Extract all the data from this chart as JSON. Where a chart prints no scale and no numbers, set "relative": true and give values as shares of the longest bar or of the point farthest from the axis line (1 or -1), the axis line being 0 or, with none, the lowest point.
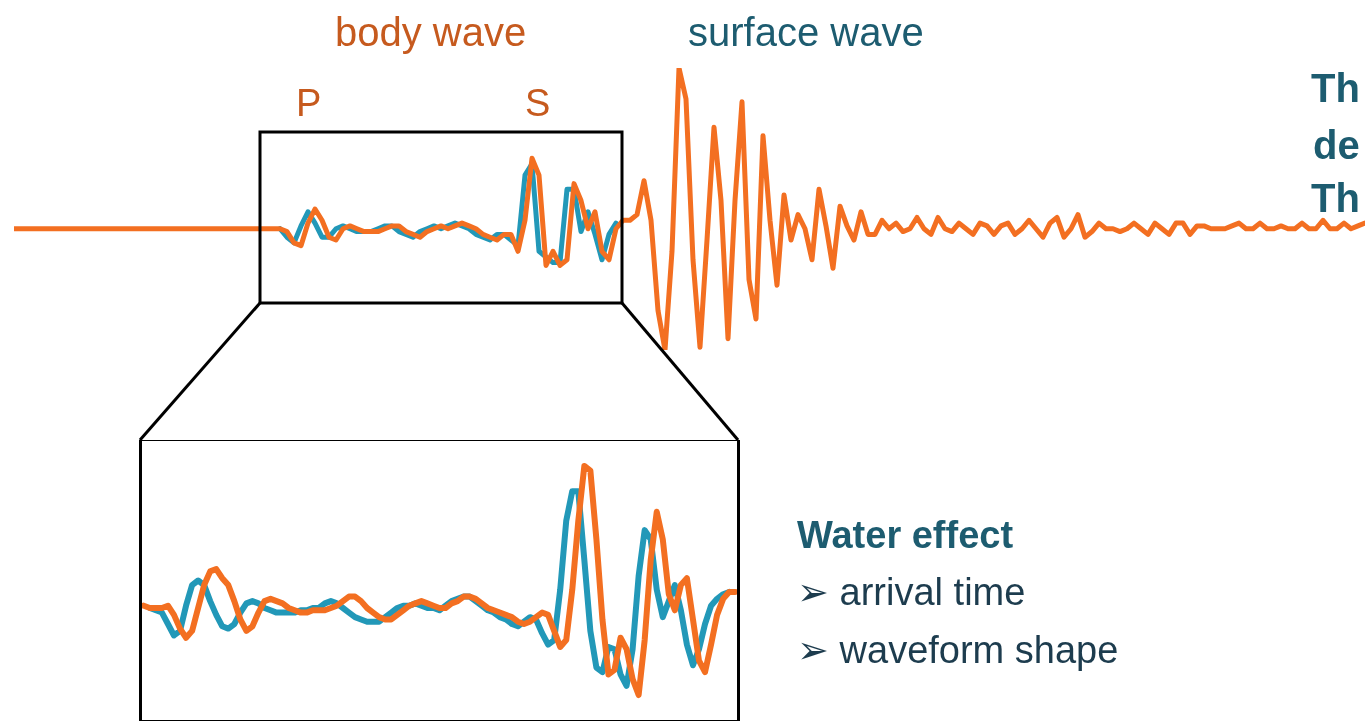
{
  "chart_data": [
    {
      "type": "line",
      "relative": true,
      "categories": [
        null,
        null,
        null,
        null,
        null,
        null,
        null,
        null,
        null,
        null,
        null,
        null,
        null,
        null,
        null,
        null,
        null,
        null,
        null,
        null,
        null,
        null,
        null,
        null,
        null,
        null,
        null,
        null,
        null,
        null,
        null,
        null,
        null,
        null,
        null,
        null,
        null,
        null,
        null,
        null,
        null,
        null,
        null,
        null,
        null,
        null,
        null,
        null,
        null,
        null,
        null,
        null,
        null,
        null,
        null,
        null,
        null,
        null,
        null,
        null,
        null,
        null,
        null,
        null,
        null,
        null,
        null,
        null,
        null,
        null,
        null,
        null,
        null,
        null,
        null,
        null,
        null,
        null,
        null,
        null,
        null,
        null,
        null,
        null,
        null,
        null,
        null,
        null,
        null,
        null,
        null,
        null,
        null,
        null,
        null,
        null,
        null,
        null,
        null,
        null,
        null,
        null,
        null,
        null,
        null,
        null,
        null,
        null,
        null,
        null,
        null,
        null,
        null,
        null,
        null,
        null,
        null,
        null,
        null,
        null,
        null,
        null,
        null,
        null,
        null,
        null,
        null,
        null,
        null,
        null,
        null,
        null,
        null,
        null,
        null,
        null,
        null,
        null,
        null,
        null,
        null,
        null,
        null,
        null,
        null,
        null,
        null,
        null,
        null,
        null,
        null,
        null,
        null,
        null,
        null,
        null,
        null,
        null,
        null,
        null,
        null,
        null,
        null,
        null,
        null,
        null,
        null,
        null,
        null,
        null,
        null,
        null,
        null,
        null,
        null,
        null,
        null,
        null,
        null,
        null,
        null,
        null,
        null,
        null,
        null,
        null,
        null,
        null,
        null,
        null,
        null,
        null,
        null,
        null
      ],
      "annotations": [
        "body wave",
        "P",
        "S",
        "surface wave",
        "Th",
        "de",
        "Th"
      ],
      "series": [
        {
          "color": "#2298b8",
          "values": [
            null,
            null,
            null,
            null,
            null,
            null,
            null,
            null,
            null,
            null,
            null,
            null,
            null,
            null,
            null,
            null,
            null,
            null,
            null,
            null,
            null,
            null,
            null,
            null,
            null,
            null,
            null,
            null,
            null,
            null,
            null,
            null,
            null,
            null,
            null,
            null,
            null,
            null,
            0.43,
            0.4,
            0.38,
            0.44,
            0.49,
            0.45,
            0.4,
            0.4,
            0.43,
            0.44,
            0.43,
            0.42,
            0.42,
            0.42,
            0.43,
            0.44,
            0.44,
            0.42,
            0.41,
            0.4,
            0.42,
            0.43,
            0.44,
            0.43,
            0.44,
            0.45,
            0.44,
            0.43,
            0.41,
            0.4,
            0.39,
            0.41,
            0.41,
            0.39,
            0.37,
            0.62,
            0.66,
            0.35,
            0.33,
            0.31,
            0.31,
            0.57,
            0.57,
            0.42,
            0.49,
            0.41,
            0.32,
            0.41,
            0.45,
            null,
            null,
            null,
            null,
            null,
            null,
            null,
            null,
            null,
            null,
            null,
            null,
            null,
            null,
            null,
            null,
            null,
            null,
            null,
            null,
            null,
            null,
            null,
            null,
            null,
            null,
            null,
            null,
            null,
            null,
            null,
            null,
            null,
            null,
            null,
            null,
            null,
            null,
            null,
            null,
            null,
            null,
            null,
            null,
            null,
            null,
            null,
            null,
            null,
            null,
            null,
            null,
            null,
            null,
            null,
            null,
            null,
            null,
            null,
            null,
            null,
            null,
            null,
            null,
            null,
            null,
            null,
            null,
            null,
            null,
            null,
            null,
            null,
            null,
            null,
            null,
            null,
            null,
            null,
            null,
            null,
            null,
            null,
            null,
            null,
            null,
            null,
            null,
            null,
            null,
            null,
            null,
            null,
            null,
            null,
            null,
            null,
            null,
            null,
            null,
            null,
            null,
            null,
            null,
            null,
            null,
            null
          ]
        },
        {
          "color": "#f36f21",
          "values": [
            0.43,
            0.43,
            0.43,
            0.43,
            0.43,
            0.43,
            0.43,
            0.43,
            0.43,
            0.43,
            0.43,
            0.43,
            0.43,
            0.43,
            0.43,
            0.43,
            0.43,
            0.43,
            0.43,
            0.43,
            0.43,
            0.43,
            0.43,
            0.43,
            0.43,
            0.43,
            0.43,
            0.43,
            0.43,
            0.43,
            0.43,
            0.43,
            0.43,
            0.43,
            0.43,
            0.43,
            0.43,
            0.43,
            0.43,
            0.42,
            0.38,
            0.37,
            0.45,
            0.5,
            0.46,
            0.4,
            0.39,
            0.43,
            0.44,
            0.43,
            0.42,
            0.42,
            0.42,
            0.43,
            0.44,
            0.44,
            0.42,
            0.41,
            0.4,
            0.42,
            0.43,
            0.44,
            0.43,
            0.44,
            0.45,
            0.44,
            0.43,
            0.41,
            0.4,
            0.39,
            0.41,
            0.41,
            0.35,
            0.46,
            0.68,
            0.62,
            0.3,
            0.35,
            0.3,
            0.32,
            0.59,
            0.53,
            0.43,
            0.49,
            0.35,
            0.32,
            0.43,
            0.46,
            0.46,
            0.48,
            0.6,
            0.46,
            0.14,
            0,
            0.35,
            1,
            0.89,
            0.32,
            0.01,
            0.39,
            0.79,
            0.53,
            0.04,
            0.53,
            0.88,
            0.25,
            0.11,
            0.76,
            0.46,
            0.23,
            0.55,
            0.39,
            0.48,
            0.43,
            0.32,
            0.57,
            0.44,
            0.29,
            0.51,
            0.44,
            0.39,
            0.49,
            0.41,
            0.41,
            0.46,
            0.43,
            0.45,
            0.42,
            0.43,
            0.47,
            0.43,
            0.41,
            0.47,
            0.43,
            0.42,
            0.45,
            0.43,
            0.41,
            0.45,
            0.44,
            0.41,
            0.44,
            0.45,
            0.41,
            0.43,
            0.46,
            0.43,
            0.4,
            0.45,
            0.47,
            0.4,
            0.43,
            0.48,
            0.4,
            0.42,
            0.45,
            0.43,
            0.43,
            0.42,
            0.43,
            0.45,
            0.43,
            0.41,
            0.45,
            0.43,
            0.41,
            0.45,
            0.45,
            0.41,
            0.44,
            0.44,
            0.43,
            0.43,
            0.43,
            0.44,
            0.45,
            0.43,
            0.43,
            0.45,
            0.43,
            0.43,
            0.44,
            0.43,
            0.43,
            0.45,
            0.43,
            0.43,
            0.46,
            0.43,
            0.43,
            0.45,
            0.43,
            0.44,
            0.45
          ]
        }
      ]
    },
    {
      "type": "line",
      "relative": true,
      "categories": [
        null,
        null,
        null,
        null,
        null,
        null,
        null,
        null,
        null,
        null,
        null,
        null,
        null,
        null,
        null,
        null,
        null,
        null,
        null,
        null,
        null,
        null,
        null,
        null,
        null,
        null,
        null,
        null,
        null,
        null,
        null,
        null,
        null,
        null,
        null,
        null,
        null,
        null,
        null,
        null,
        null,
        null,
        null,
        null,
        null,
        null,
        null,
        null,
        null,
        null,
        null,
        null,
        null,
        null,
        null,
        null,
        null,
        null,
        null,
        null,
        null,
        null,
        null,
        null,
        null,
        null,
        null,
        null,
        null,
        null,
        null,
        null,
        null,
        null,
        null,
        null,
        null,
        null,
        null,
        null,
        null,
        null,
        null,
        null,
        null,
        null,
        null,
        null,
        null,
        null,
        null,
        null,
        null,
        null,
        null,
        null,
        null,
        null,
        null
      ],
      "annotations": [
        "Water effect",
        "➢ arrival time",
        "➢ waveform shape"
      ],
      "series": [
        {
          "color": "#2298b8",
          "values": [
            null,
            0.38,
            0.37,
            0.36,
            0.31,
            0.26,
            0.28,
            0.39,
            0.48,
            0.5,
            0.48,
            0.41,
            0.35,
            0.3,
            0.29,
            0.31,
            0.36,
            0.4,
            0.41,
            0.4,
            0.38,
            0.37,
            0.36,
            0.36,
            0.36,
            0.36,
            0.37,
            0.37,
            0.38,
            0.38,
            0.4,
            0.41,
            0.4,
            0.38,
            0.36,
            0.34,
            0.33,
            0.32,
            0.32,
            0.32,
            0.34,
            0.36,
            0.38,
            0.39,
            0.39,
            0.4,
            0.39,
            0.38,
            0.38,
            0.37,
            0.39,
            0.41,
            0.42,
            0.43,
            0.43,
            0.41,
            0.39,
            0.37,
            0.36,
            0.34,
            0.33,
            0.31,
            0.3,
            0.32,
            0.34,
            0.33,
            0.27,
            0.22,
            0.24,
            0.46,
            0.76,
            0.89,
            0.89,
            0.59,
            0.28,
            0.12,
            0.1,
            0.21,
            0.2,
            0.09,
            0.04,
            0.2,
            0.52,
            0.72,
            0.68,
            0.46,
            0.34,
            0.41,
            0.48,
            0.37,
            0.22,
            0.13,
            0.2,
            0.31,
            0.39,
            0.42,
            0.44,
            0.45,
            null
          ]
        },
        {
          "color": "#f36f21",
          "values": [
            0.39,
            0.38,
            0.38,
            0.38,
            0.39,
            0.35,
            0.29,
            0.25,
            0.28,
            0.38,
            0.48,
            0.54,
            0.55,
            0.51,
            0.48,
            0.41,
            0.33,
            0.28,
            0.3,
            0.36,
            0.41,
            0.42,
            0.41,
            0.4,
            0.38,
            0.37,
            0.36,
            0.36,
            0.37,
            0.37,
            0.37,
            0.38,
            0.39,
            0.41,
            0.43,
            0.43,
            0.41,
            0.38,
            0.36,
            0.34,
            0.33,
            0.33,
            0.35,
            0.37,
            0.39,
            0.4,
            0.41,
            0.4,
            0.39,
            0.38,
            0.38,
            0.4,
            0.41,
            0.43,
            0.43,
            0.42,
            0.4,
            0.38,
            0.37,
            0.36,
            0.35,
            0.34,
            0.32,
            0.31,
            0.32,
            0.34,
            0.36,
            0.35,
            0.28,
            0.21,
            0.24,
            0.46,
            0.76,
            1,
            0.98,
            0.68,
            0.33,
            0.09,
            0.11,
            0.25,
            0.2,
            0.07,
            0,
            0.24,
            0.59,
            0.8,
            0.68,
            0.44,
            0.37,
            0.48,
            0.51,
            0.33,
            0.15,
            0.1,
            0.22,
            0.35,
            0.42,
            0.45,
            0.45
          ]
        }
      ]
    }
  ]
}
